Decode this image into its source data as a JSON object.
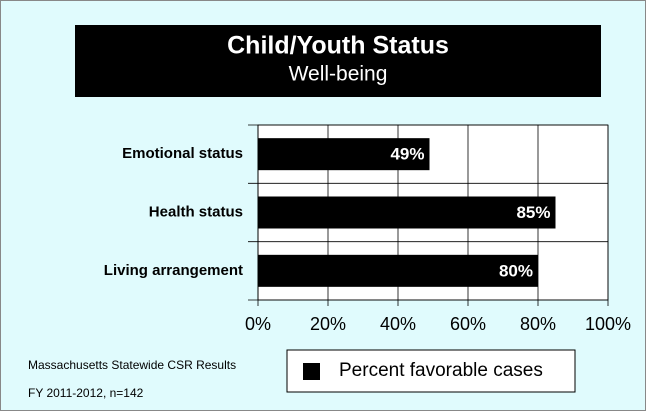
{
  "chart_data": {
    "type": "bar",
    "orientation": "horizontal",
    "title": "Child/Youth Status",
    "subtitle": "Well-being",
    "categories": [
      "Emotional status",
      "Health status",
      "Living arrangement"
    ],
    "series": [
      {
        "name": "Percent favorable cases",
        "color": "#000000",
        "values": [
          49,
          85,
          80
        ],
        "value_labels": [
          "49%",
          "85%",
          "80%"
        ]
      }
    ],
    "xlim": [
      0,
      100
    ],
    "xticks": [
      {
        "value": 0,
        "label": "0%"
      },
      {
        "value": 20,
        "label": "20%"
      },
      {
        "value": 40,
        "label": "40%"
      },
      {
        "value": 60,
        "label": "60%"
      },
      {
        "value": 80,
        "label": "80%"
      },
      {
        "value": 100,
        "label": "100%"
      }
    ],
    "grid": true,
    "notes": [
      "Massachusetts Statewide CSR Results",
      "FY 2011-2012, n=142"
    ]
  }
}
